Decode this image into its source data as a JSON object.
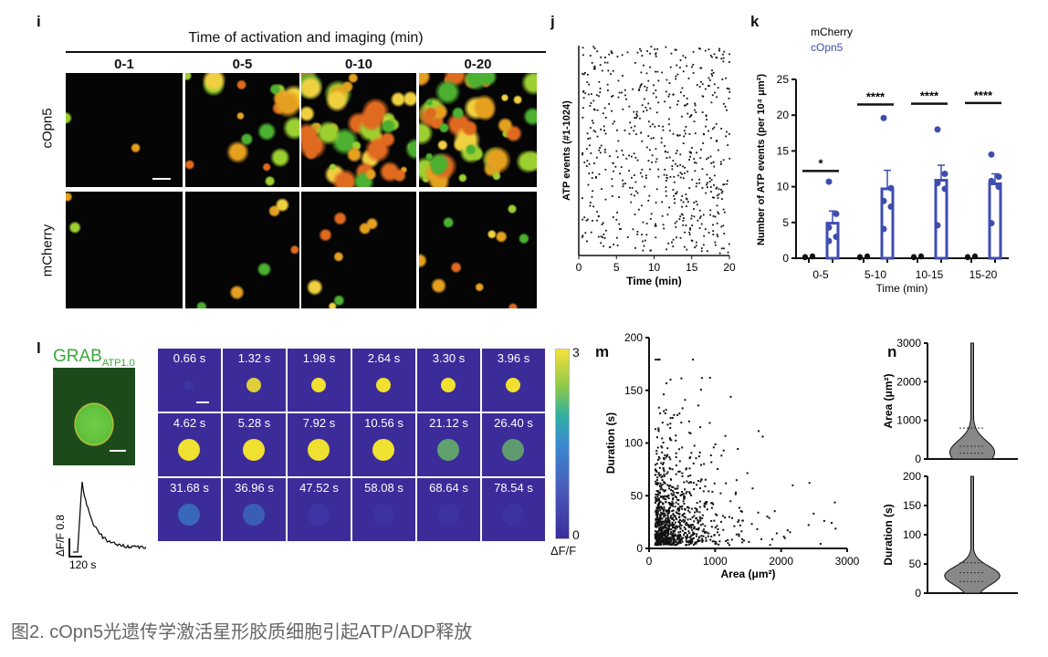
{
  "panel_i": {
    "label": "i",
    "title": "Time of activation and imaging (min)",
    "columns": [
      "0-1",
      "0-5",
      "0-10",
      "0-20"
    ],
    "rows": [
      "cOpn5",
      "mCherry"
    ],
    "density": [
      [
        0.02,
        0.3,
        0.75,
        0.9
      ],
      [
        0.02,
        0.08,
        0.12,
        0.15
      ]
    ]
  },
  "panel_l": {
    "label": "l",
    "sensor": "GRAB",
    "sensor_sub": "ATP1.0",
    "trace_y_scale": "ΔF/F 0.8",
    "trace_x_scale": "120 s",
    "times": [
      "0.66 s",
      "1.32 s",
      "1.98 s",
      "2.64 s",
      "3.30 s",
      "3.96 s",
      "4.62 s",
      "5.28 s",
      "7.92 s",
      "10.56 s",
      "21.12 s",
      "26.40 s",
      "31.68 s",
      "36.96 s",
      "47.52 s",
      "58.08 s",
      "68.64 s",
      "78.54 s"
    ],
    "intensity": [
      0.3,
      0.9,
      1,
      1,
      1,
      1,
      1,
      1,
      1,
      1,
      0.8,
      0.75,
      0.6,
      0.5,
      0.3,
      0.2,
      0.12,
      0.06
    ],
    "colorbar_max": "3",
    "colorbar_min": "0",
    "colorbar_label": "ΔF/F"
  },
  "caption": "图2. cOpn5光遗传学激活星形胶质细胞引起ATP/ADP释放",
  "chart_data": [
    {
      "panel": "j",
      "type": "scatter",
      "title": "",
      "xlabel": "Time (min)",
      "ylabel": "ATP events (#1-1024)",
      "xlim": [
        0,
        20
      ],
      "xticks": [
        "0",
        "5",
        "10",
        "15",
        "20"
      ],
      "n_events": 1024,
      "seed": 7
    },
    {
      "panel": "k",
      "type": "bar",
      "xlabel": "Time (min)",
      "ylabel": "Number of ATP events (per 10⁴ μm²)",
      "ylim": [
        0,
        25
      ],
      "yticks": [
        "0",
        "5",
        "10",
        "15",
        "20",
        "25"
      ],
      "categories": [
        "0-5",
        "5-10",
        "10-15",
        "15-20"
      ],
      "series": [
        {
          "name": "mCherry",
          "color": "#111111",
          "values": [
            0.2,
            0.2,
            0.2,
            0.2
          ],
          "errors": [
            0,
            0,
            0,
            0
          ],
          "points": [
            [
              0.1,
              0.2,
              0.2,
              0.3
            ],
            [
              0.1,
              0.2,
              0.2,
              0.3
            ],
            [
              0.1,
              0.2,
              0.2,
              0.3
            ],
            [
              0.1,
              0.2,
              0.2,
              0.3
            ]
          ]
        },
        {
          "name": "cOpn5",
          "color": "#3f4db0",
          "values": [
            4.9,
            9.7,
            10.9,
            10.4
          ],
          "errors": [
            1.7,
            2.6,
            2.1,
            1.4
          ],
          "points": [
            [
              10.7,
              6.2,
              4.3,
              3.0,
              2.4
            ],
            [
              19.6,
              9.8,
              8.0,
              7.2,
              4.1
            ],
            [
              18.0,
              11.8,
              10.5,
              9.7,
              4.6
            ],
            [
              14.5,
              11.4,
              10.8,
              10.0,
              4.9
            ]
          ]
        }
      ],
      "significance": [
        {
          "text": "*",
          "y": 12.2
        },
        {
          "text": "****",
          "y": 21.5
        },
        {
          "text": "****",
          "y": 21.6
        },
        {
          "text": "****",
          "y": 21.7
        }
      ]
    },
    {
      "panel": "m",
      "type": "scatter",
      "xlabel": "Area (μm²)",
      "ylabel": "Duration (s)",
      "xlim": [
        0,
        3000
      ],
      "ylim": [
        0,
        200
      ],
      "xticks": [
        "0",
        "1000",
        "2000",
        "3000"
      ],
      "yticks": [
        "0",
        "50",
        "100",
        "150",
        "200"
      ],
      "n_points": 1024,
      "seed": 11
    },
    {
      "panel": "n",
      "type": "violin",
      "plots": [
        {
          "ylabel": "Area (μm²)",
          "ylim": [
            0,
            3000
          ],
          "yticks": [
            "0",
            "1000",
            "2000",
            "3000"
          ],
          "quartiles": [
            150,
            330,
            800
          ]
        },
        {
          "ylabel": "Duration (s)",
          "ylim": [
            0,
            200
          ],
          "yticks": [
            "0",
            "50",
            "100",
            "150",
            "200"
          ],
          "quartiles": [
            20,
            35,
            52
          ]
        }
      ]
    }
  ]
}
